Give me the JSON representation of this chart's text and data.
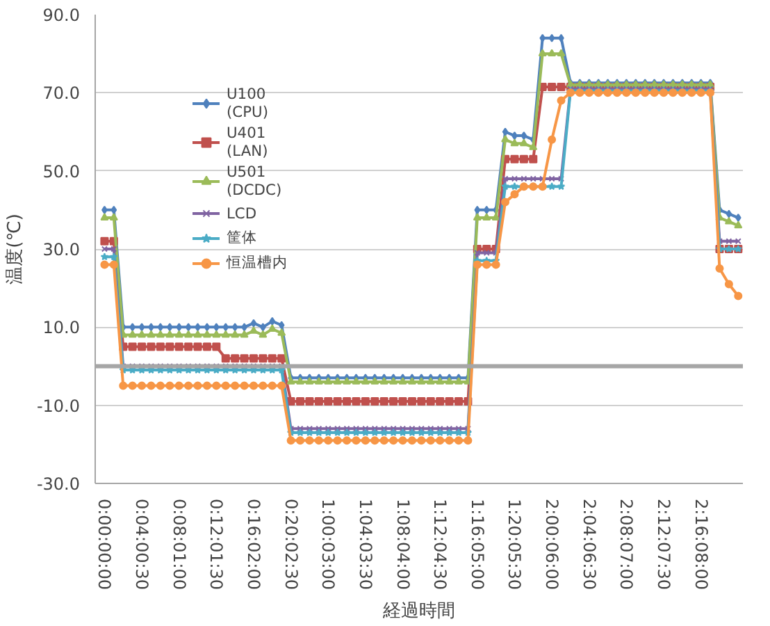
{
  "chart_data": {
    "type": "line",
    "xlabel": "経過時間",
    "ylabel": "温度(℃)",
    "categories": [
      "0:00:00:00",
      null,
      null,
      null,
      "0:04:00:30",
      null,
      null,
      null,
      "0:08:01:00",
      null,
      null,
      null,
      "0:12:01:30",
      null,
      null,
      null,
      "0:16:02:00",
      null,
      null,
      null,
      "0:20:02:30",
      null,
      null,
      null,
      "1:00:03:00",
      null,
      null,
      null,
      "1:04:03:30",
      null,
      null,
      null,
      "1:08:04:00",
      null,
      null,
      null,
      "1:12:04:30",
      null,
      null,
      null,
      "1:16:05:00",
      null,
      null,
      null,
      "1:20:05:30",
      null,
      null,
      null,
      "2:00:06:00",
      null,
      null,
      null,
      "2:04:06:30",
      null,
      null,
      null,
      "2:08:07:00",
      null,
      null,
      null,
      "2:12:07:30",
      null,
      null,
      null,
      "2:16:08:00",
      null,
      null,
      null,
      null
    ],
    "ylim": [
      -30,
      90
    ],
    "yticks": [
      {
        "value": -30,
        "label": "-30.0"
      },
      {
        "value": -10,
        "label": "-10.0"
      },
      {
        "value": 10,
        "label": "10.0"
      },
      {
        "value": 30,
        "label": "30.0"
      },
      {
        "value": 50,
        "label": "50.0"
      },
      {
        "value": 70,
        "label": "70.0"
      },
      {
        "value": 90,
        "label": "90.0"
      }
    ],
    "grid": "y",
    "legend": "top left",
    "line_style": "solid",
    "ref_lines": [
      {
        "axis": "y",
        "value": 0,
        "color": "#a6a6a6"
      }
    ],
    "series": [
      {
        "name": "U100\n(CPU)",
        "color": "#4f81bd",
        "marker": "diamond",
        "values": [
          40,
          40,
          10,
          10,
          10,
          10,
          10,
          10,
          10,
          10,
          10,
          10,
          10,
          10,
          10,
          10,
          11,
          10,
          11.5,
          10.5,
          -3,
          -3,
          -3,
          -3,
          -3,
          -3,
          -3,
          -3,
          -3,
          -3,
          -3,
          -3,
          -3,
          -3,
          -3,
          -3,
          -3,
          -3,
          -3,
          -3,
          40,
          40,
          40,
          60,
          59,
          59,
          58,
          84,
          84,
          84,
          72.5,
          72.5,
          72.5,
          72.5,
          72.5,
          72.5,
          72.5,
          72.5,
          72.5,
          72.5,
          72.5,
          72.5,
          72.5,
          72.5,
          72.5,
          72.5,
          40,
          39,
          38
        ]
      },
      {
        "name": "U401\n(LAN)",
        "color": "#c0504d",
        "marker": "square",
        "values": [
          32,
          32,
          5,
          5,
          5,
          5,
          5,
          5,
          5,
          5,
          5,
          5,
          5,
          2,
          2,
          2,
          2,
          2,
          2,
          2,
          -9,
          -9,
          -9,
          -9,
          -9,
          -9,
          -9,
          -9,
          -9,
          -9,
          -9,
          -9,
          -9,
          -9,
          -9,
          -9,
          -9,
          -9,
          -9,
          -9,
          30,
          30,
          30,
          53,
          53,
          53,
          53,
          71.5,
          71.5,
          71.5,
          71.5,
          71.5,
          71.5,
          71.5,
          71.5,
          71.5,
          71.5,
          71.5,
          71.5,
          71.5,
          71.5,
          71.5,
          71.5,
          71.5,
          71.5,
          71.5,
          30,
          30,
          30
        ]
      },
      {
        "name": "U501\n(DCDC)",
        "color": "#9bbb59",
        "marker": "triangle",
        "values": [
          38,
          38,
          8,
          8,
          8,
          8,
          8,
          8,
          8,
          8,
          8,
          8,
          8,
          8,
          8,
          8,
          9,
          8,
          9.5,
          8.5,
          -4,
          -4,
          -4,
          -4,
          -4,
          -4,
          -4,
          -4,
          -4,
          -4,
          -4,
          -4,
          -4,
          -4,
          -4,
          -4,
          -4,
          -4,
          -4,
          -4,
          38,
          38,
          38,
          58,
          57,
          57,
          56,
          80,
          80,
          80,
          72,
          72,
          72,
          72,
          72,
          72,
          72,
          72,
          72,
          72,
          72,
          72,
          72,
          72,
          72,
          72,
          38,
          37,
          36
        ]
      },
      {
        "name": "LCD",
        "color": "#8064a2",
        "marker": "cross",
        "values": [
          30,
          30,
          0,
          0,
          0,
          0,
          0,
          0,
          0,
          0,
          0,
          0,
          0,
          0,
          0,
          0,
          0,
          0,
          0,
          0,
          -16,
          -16,
          -16,
          -16,
          -16,
          -16,
          -16,
          -16,
          -16,
          -16,
          -16,
          -16,
          -16,
          -16,
          -16,
          -16,
          -16,
          -16,
          -16,
          -16,
          29,
          29,
          29,
          48,
          48,
          48,
          48,
          48,
          48,
          48,
          71,
          71,
          71,
          71,
          71,
          71,
          71,
          71,
          71,
          71,
          71,
          71,
          71,
          71,
          71,
          71,
          32,
          32,
          32
        ]
      },
      {
        "name": "筐体",
        "color": "#4bacc6",
        "marker": "star",
        "values": [
          28,
          28,
          -1,
          -1,
          -1,
          -1,
          -1,
          -1,
          -1,
          -1,
          -1,
          -1,
          -1,
          -1,
          -1,
          -1,
          -1,
          -1,
          -1,
          -1,
          -17,
          -17,
          -17,
          -17,
          -17,
          -17,
          -17,
          -17,
          -17,
          -17,
          -17,
          -17,
          -17,
          -17,
          -17,
          -17,
          -17,
          -17,
          -17,
          -17,
          27,
          27,
          27,
          46,
          46,
          46,
          46,
          46,
          46,
          46,
          70.5,
          70.5,
          70.5,
          70.5,
          70.5,
          70.5,
          70.5,
          70.5,
          70.5,
          70.5,
          70.5,
          70.5,
          70.5,
          70.5,
          70.5,
          70.5,
          30,
          30,
          30
        ]
      },
      {
        "name": "恒温槽内",
        "color": "#f79646",
        "marker": "circle",
        "values": [
          26,
          26,
          -5,
          -5,
          -5,
          -5,
          -5,
          -5,
          -5,
          -5,
          -5,
          -5,
          -5,
          -5,
          -5,
          -5,
          -5,
          -5,
          -5,
          -5,
          -19,
          -19,
          -19,
          -19,
          -19,
          -19,
          -19,
          -19,
          -19,
          -19,
          -19,
          -19,
          -19,
          -19,
          -19,
          -19,
          -19,
          -19,
          -19,
          -19,
          26,
          26,
          26,
          42,
          44,
          46,
          46,
          46,
          58,
          68,
          70,
          70,
          70,
          70,
          70,
          70,
          70,
          70,
          70,
          70,
          70,
          70,
          70,
          70,
          70,
          70,
          25,
          21,
          18
        ]
      }
    ]
  }
}
